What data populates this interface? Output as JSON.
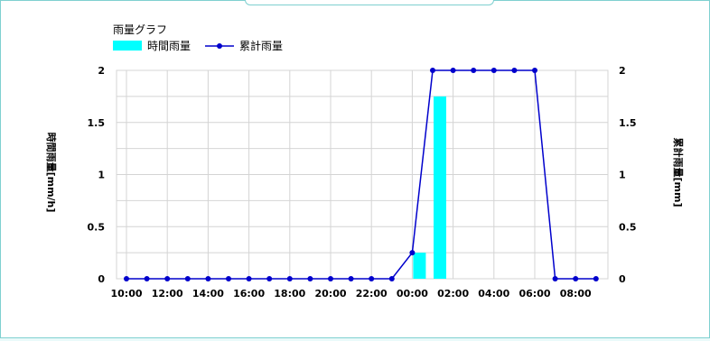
{
  "chart_data": {
    "type": "bar+line",
    "title": "雨量グラフ",
    "legend": [
      {
        "label": "時間雨量",
        "kind": "bar",
        "color": "#00ffff"
      },
      {
        "label": "累計雨量",
        "kind": "line",
        "color": "#0000cc"
      }
    ],
    "legend_placement": "top-left",
    "ylabel_left": "時間雨量[mm/h]",
    "ylabel_right": "累計雨量[mm]",
    "ylim": [
      0,
      2
    ],
    "y_ticks": [
      "0",
      "0.5",
      "1",
      "1.5",
      "2"
    ],
    "x_tick_labels": [
      "10:00",
      "12:00",
      "14:00",
      "16:00",
      "18:00",
      "20:00",
      "22:00",
      "00:00",
      "02:00",
      "04:00",
      "06:00",
      "08:00"
    ],
    "hours": [
      "10:00",
      "11:00",
      "12:00",
      "13:00",
      "14:00",
      "15:00",
      "16:00",
      "17:00",
      "18:00",
      "19:00",
      "20:00",
      "21:00",
      "22:00",
      "23:00",
      "00:00",
      "01:00",
      "02:00",
      "03:00",
      "04:00",
      "05:00",
      "06:00",
      "07:00",
      "08:00",
      "09:00"
    ],
    "hourly_rainfall": [
      0,
      0,
      0,
      0,
      0,
      0,
      0,
      0,
      0,
      0,
      0,
      0,
      0,
      0,
      0.25,
      1.75,
      0,
      0,
      0,
      0,
      0,
      0,
      0,
      0
    ],
    "cumulative_rainfall": [
      0,
      0,
      0,
      0,
      0,
      0,
      0,
      0,
      0,
      0,
      0,
      0,
      0,
      0,
      0.25,
      2,
      2,
      2,
      2,
      2,
      2,
      0,
      0,
      0
    ],
    "grid": true
  }
}
